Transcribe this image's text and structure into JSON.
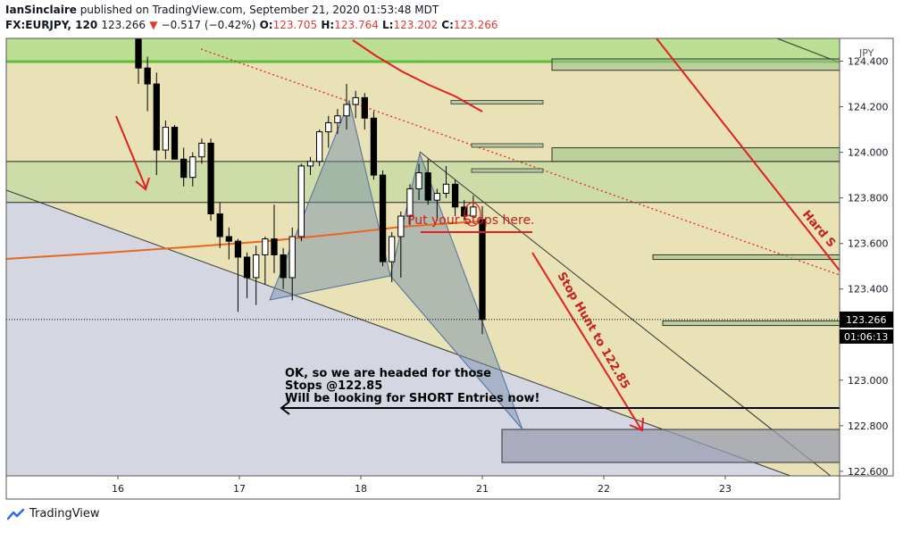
{
  "header": {
    "author": "IanSinclaire",
    "published_text": "published on TradingView.com, September 21, 2020 01:53:48 MDT",
    "symbol": "FX:EURJPY, 120",
    "last": "123.266",
    "change": "−0.517 (−0.42%)",
    "o_label": "O:",
    "o_value": "123.705",
    "h_label": "H:",
    "h_value": "123.764",
    "l_label": "L:",
    "l_value": "123.202",
    "c_label": "C:",
    "c_value": "123.266"
  },
  "footer": {
    "brand": "TradingView"
  },
  "colors": {
    "bull": "#ffffff",
    "bear": "#000000",
    "red": "#e02020",
    "orange": "#e8661e",
    "green_zone": "#b6df8f",
    "green_line": "#5cbf3a",
    "yellow_bg": "#e8e2b6",
    "lower_bg": "#d4d6e2",
    "harmonic": "#6e8aa8",
    "price_label_bg": "#000000"
  },
  "chart_data": {
    "type": "candlestick",
    "symbol": "FX:EURJPY",
    "interval": "120",
    "currency_label": "JPY",
    "ylim": [
      122.58,
      124.5
    ],
    "y_ticks": [
      122.6,
      122.8,
      123.0,
      123.2,
      123.4,
      123.6,
      123.8,
      124.0,
      124.2,
      124.4
    ],
    "y_tick_labels": [
      "122.600",
      "122.800",
      "123.000",
      "123.200",
      "123.400",
      "123.600",
      "123.800",
      "124.000",
      "124.200",
      "124.400"
    ],
    "x_day_labels": [
      "16",
      "17",
      "18",
      "21",
      "22",
      "23"
    ],
    "current_price": 123.266,
    "current_price_label": "123.266",
    "countdown_label": "01:06:13",
    "candles": [
      {
        "o": 124.5,
        "h": 124.5,
        "l": 124.3,
        "c": 124.37
      },
      {
        "o": 124.37,
        "h": 124.42,
        "l": 124.18,
        "c": 124.3
      },
      {
        "o": 124.3,
        "h": 124.35,
        "l": 123.9,
        "c": 124.01
      },
      {
        "o": 124.01,
        "h": 124.14,
        "l": 123.97,
        "c": 124.11
      },
      {
        "o": 124.11,
        "h": 124.12,
        "l": 123.98,
        "c": 123.97
      },
      {
        "o": 123.97,
        "h": 124.02,
        "l": 123.85,
        "c": 123.89
      },
      {
        "o": 123.89,
        "h": 124.0,
        "l": 123.85,
        "c": 123.98
      },
      {
        "o": 123.98,
        "h": 124.06,
        "l": 123.95,
        "c": 124.04
      },
      {
        "o": 124.04,
        "h": 124.06,
        "l": 123.7,
        "c": 123.73
      },
      {
        "o": 123.73,
        "h": 123.78,
        "l": 123.58,
        "c": 123.63
      },
      {
        "o": 123.63,
        "h": 123.67,
        "l": 123.53,
        "c": 123.61
      },
      {
        "o": 123.61,
        "h": 123.62,
        "l": 123.3,
        "c": 123.54
      },
      {
        "o": 123.54,
        "h": 123.56,
        "l": 123.36,
        "c": 123.45
      },
      {
        "o": 123.45,
        "h": 123.59,
        "l": 123.33,
        "c": 123.55
      },
      {
        "o": 123.55,
        "h": 123.63,
        "l": 123.42,
        "c": 123.62
      },
      {
        "o": 123.62,
        "h": 123.77,
        "l": 123.47,
        "c": 123.55
      },
      {
        "o": 123.55,
        "h": 123.58,
        "l": 123.4,
        "c": 123.45
      },
      {
        "o": 123.45,
        "h": 123.67,
        "l": 123.35,
        "c": 123.63
      },
      {
        "o": 123.63,
        "h": 123.95,
        "l": 123.61,
        "c": 123.94
      },
      {
        "o": 123.94,
        "h": 123.98,
        "l": 123.9,
        "c": 123.96
      },
      {
        "o": 123.96,
        "h": 124.1,
        "l": 123.94,
        "c": 124.09
      },
      {
        "o": 124.09,
        "h": 124.16,
        "l": 124.02,
        "c": 124.13
      },
      {
        "o": 124.13,
        "h": 124.19,
        "l": 124.08,
        "c": 124.16
      },
      {
        "o": 124.16,
        "h": 124.3,
        "l": 124.1,
        "c": 124.21
      },
      {
        "o": 124.21,
        "h": 124.27,
        "l": 124.15,
        "c": 124.24
      },
      {
        "o": 124.24,
        "h": 124.26,
        "l": 124.1,
        "c": 124.15
      },
      {
        "o": 124.15,
        "h": 124.18,
        "l": 123.88,
        "c": 123.9
      },
      {
        "o": 123.9,
        "h": 123.92,
        "l": 123.5,
        "c": 123.52
      },
      {
        "o": 123.52,
        "h": 123.65,
        "l": 123.43,
        "c": 123.63
      },
      {
        "o": 123.63,
        "h": 123.74,
        "l": 123.45,
        "c": 123.72
      },
      {
        "o": 123.72,
        "h": 123.86,
        "l": 123.68,
        "c": 123.84
      },
      {
        "o": 123.84,
        "h": 123.95,
        "l": 123.79,
        "c": 123.91
      },
      {
        "o": 123.91,
        "h": 123.97,
        "l": 123.77,
        "c": 123.79
      },
      {
        "o": 123.79,
        "h": 123.84,
        "l": 123.7,
        "c": 123.82
      },
      {
        "o": 123.82,
        "h": 123.94,
        "l": 123.8,
        "c": 123.86
      },
      {
        "o": 123.86,
        "h": 123.88,
        "l": 123.72,
        "c": 123.76
      },
      {
        "o": 123.76,
        "h": 123.79,
        "l": 123.7,
        "c": 123.72
      },
      {
        "o": 123.72,
        "h": 123.81,
        "l": 123.7,
        "c": 123.76
      },
      {
        "o": 123.705,
        "h": 123.764,
        "l": 123.202,
        "c": 123.266
      }
    ],
    "zones": [
      {
        "name": "green-zone",
        "from": 124.4,
        "to": 124.55
      },
      {
        "name": "upper-support-zone",
        "from": 123.78,
        "to": 123.96
      }
    ],
    "horizontal_lines": [
      123.96,
      123.78,
      124.4
    ],
    "ordered_boxes": [
      {
        "from": 124.36,
        "to": 124.41
      },
      {
        "from": 123.96,
        "to": 124.02
      },
      {
        "from": 123.53,
        "to": 123.55
      },
      {
        "from": 123.24,
        "to": 123.26
      },
      {
        "from": 122.65,
        "to": 122.8
      }
    ],
    "small_levels": [
      124.22,
      124.03,
      123.92
    ],
    "stop_level": 123.65,
    "target_level": 122.85,
    "annotations": {
      "stops": "Put your Stops here.",
      "stop_hunt": "Stop Hunt to 122.85",
      "hard": "Hard S",
      "note_line1": "OK, so we are headed for those",
      "note_line2": "Stops @122.85",
      "note_line3": "Will be looking for SHORT Entries now!"
    }
  }
}
